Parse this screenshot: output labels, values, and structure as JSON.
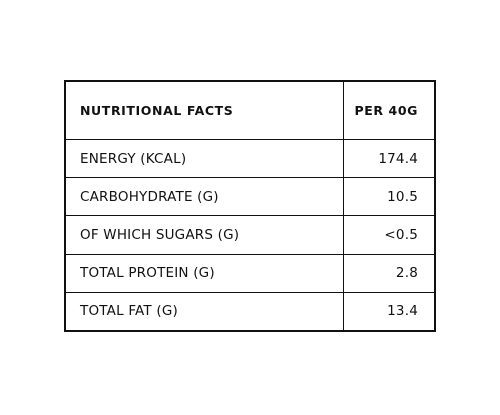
{
  "table": {
    "header": {
      "label": "NUTRITIONAL FACTS",
      "value": "PER 40G"
    },
    "rows": [
      {
        "label": "ENERGY (KCAL)",
        "value": "174.4"
      },
      {
        "label": "CARBOHYDRATE (G)",
        "value": "10.5"
      },
      {
        "label": "OF WHICH SUGARS (G)",
        "value": "<0.5"
      },
      {
        "label": "TOTAL PROTEIN (G)",
        "value": "2.8"
      },
      {
        "label": "TOTAL FAT (G)",
        "value": "13.4"
      }
    ]
  }
}
